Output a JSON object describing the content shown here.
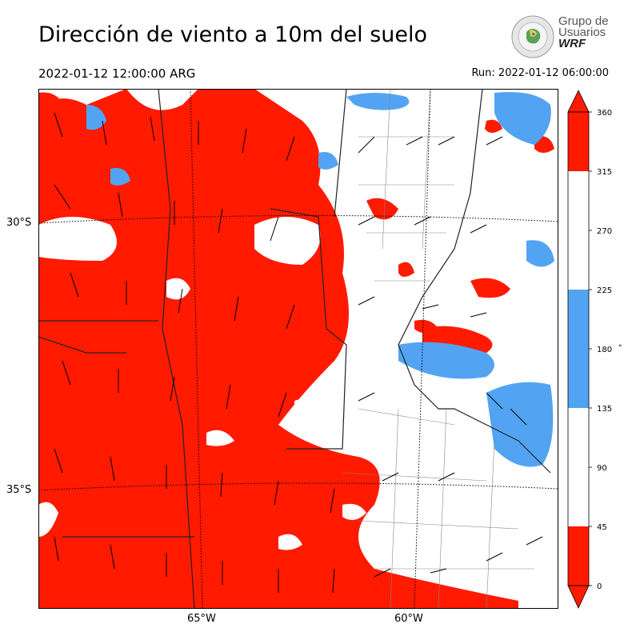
{
  "title": "Dirección de viento a 10m del suelo",
  "valid_time": "2022-01-12 12:00:00 ARG",
  "run_time": "Run: 2022-01-12 06:00:00",
  "logo": {
    "line1": "Grupo de",
    "line2": "Usuarios",
    "line3": "WRF"
  },
  "map": {
    "lat_labels": [
      "30°S",
      "35°S"
    ],
    "lon_labels": [
      "65°W",
      "60°W"
    ],
    "colors": {
      "sector_0_45": "#ff1a00",
      "sector_45_135": "#ffffff",
      "sector_135_225": "#52a4f2",
      "sector_225_315": "#ffffff",
      "sector_315_360": "#ff1a00"
    }
  },
  "colorbar": {
    "ticks": [
      "360",
      "315",
      "270",
      "225",
      "180",
      "135",
      "90",
      "45",
      "0"
    ],
    "unit": "°",
    "segments": [
      {
        "from": 0,
        "to": 45,
        "color": "#ff1a00"
      },
      {
        "from": 45,
        "to": 135,
        "color": "#ffffff"
      },
      {
        "from": 135,
        "to": 225,
        "color": "#52a4f2"
      },
      {
        "from": 225,
        "to": 315,
        "color": "#ffffff"
      },
      {
        "from": 315,
        "to": 360,
        "color": "#ff1a00"
      }
    ]
  }
}
